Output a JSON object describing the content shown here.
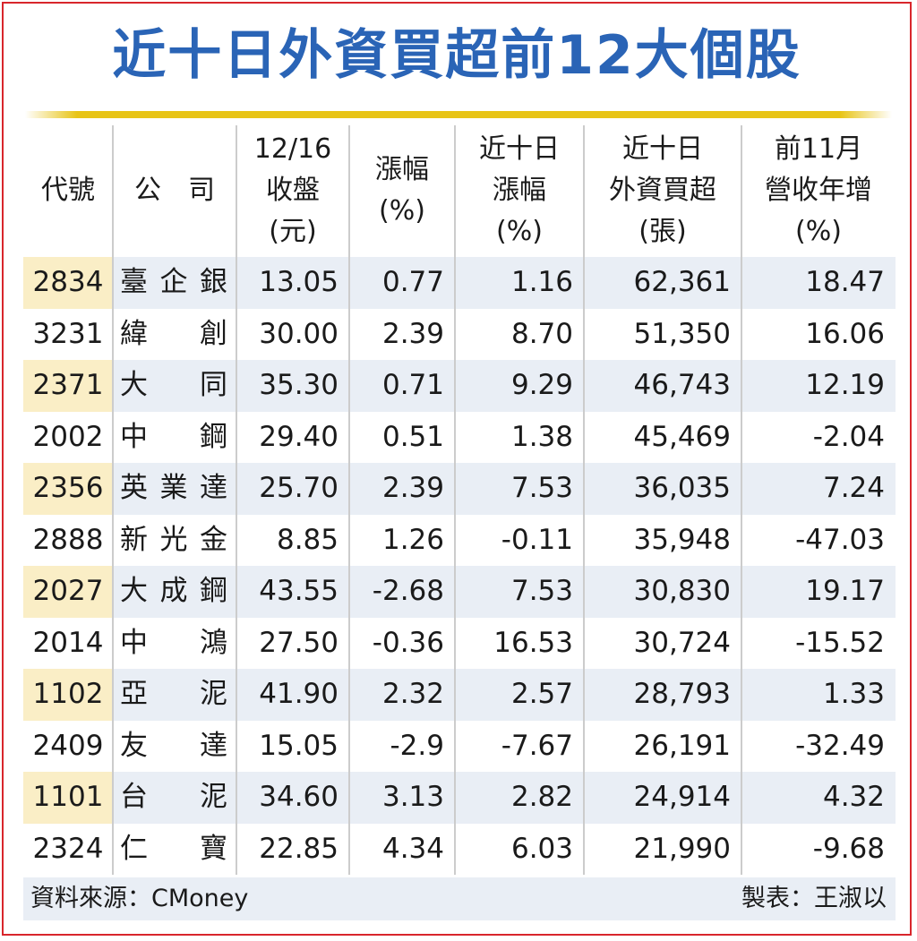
{
  "title": "近十日外資買超前12大個股",
  "chart_data": {
    "type": "table",
    "title": "近十日外資買超前12大個股",
    "columns": [
      {
        "key": "code",
        "label": "代號"
      },
      {
        "key": "company",
        "label": "公　司"
      },
      {
        "key": "close",
        "label": "12/16\n收盤\n(元)"
      },
      {
        "key": "change",
        "label": "漲幅\n(%)"
      },
      {
        "key": "change10",
        "label": "近十日\n漲幅\n(%)"
      },
      {
        "key": "foreign_buy",
        "label": "近十日\n外資買超\n(張)"
      },
      {
        "key": "revenue_growth",
        "label": "前11月\n營收年增\n(%)"
      }
    ],
    "rows": [
      {
        "code": "2834",
        "company": "臺企銀",
        "close": "13.05",
        "change": "0.77",
        "change10": "1.16",
        "foreign_buy": "62,361",
        "revenue_growth": "18.47"
      },
      {
        "code": "3231",
        "company": "緯創",
        "close": "30.00",
        "change": "2.39",
        "change10": "8.70",
        "foreign_buy": "51,350",
        "revenue_growth": "16.06"
      },
      {
        "code": "2371",
        "company": "大同",
        "close": "35.30",
        "change": "0.71",
        "change10": "9.29",
        "foreign_buy": "46,743",
        "revenue_growth": "12.19"
      },
      {
        "code": "2002",
        "company": "中鋼",
        "close": "29.40",
        "change": "0.51",
        "change10": "1.38",
        "foreign_buy": "45,469",
        "revenue_growth": "-2.04"
      },
      {
        "code": "2356",
        "company": "英業達",
        "close": "25.70",
        "change": "2.39",
        "change10": "7.53",
        "foreign_buy": "36,035",
        "revenue_growth": "7.24"
      },
      {
        "code": "2888",
        "company": "新光金",
        "close": "8.85",
        "change": "1.26",
        "change10": "-0.11",
        "foreign_buy": "35,948",
        "revenue_growth": "-47.03"
      },
      {
        "code": "2027",
        "company": "大成鋼",
        "close": "43.55",
        "change": "-2.68",
        "change10": "7.53",
        "foreign_buy": "30,830",
        "revenue_growth": "19.17"
      },
      {
        "code": "2014",
        "company": "中鴻",
        "close": "27.50",
        "change": "-0.36",
        "change10": "16.53",
        "foreign_buy": "30,724",
        "revenue_growth": "-15.52"
      },
      {
        "code": "1102",
        "company": "亞泥",
        "close": "41.90",
        "change": "2.32",
        "change10": "2.57",
        "foreign_buy": "28,793",
        "revenue_growth": "1.33"
      },
      {
        "code": "2409",
        "company": "友達",
        "close": "15.05",
        "change": "-2.9",
        "change10": "-7.67",
        "foreign_buy": "26,191",
        "revenue_growth": "-32.49"
      },
      {
        "code": "1101",
        "company": "台泥",
        "close": "34.60",
        "change": "3.13",
        "change10": "2.82",
        "foreign_buy": "24,914",
        "revenue_growth": "4.32"
      },
      {
        "code": "2324",
        "company": "仁寶",
        "close": "22.85",
        "change": "4.34",
        "change10": "6.03",
        "foreign_buy": "21,990",
        "revenue_growth": "-9.68"
      }
    ]
  },
  "footer": {
    "source": "資料來源：CMoney",
    "maker": "製表：王淑以"
  },
  "colors": {
    "title": "#2a64b6",
    "border": "#d8262c",
    "rule": "#e8c416",
    "row_shade": "#e9eef5",
    "code_highlight": "#faeec6"
  }
}
